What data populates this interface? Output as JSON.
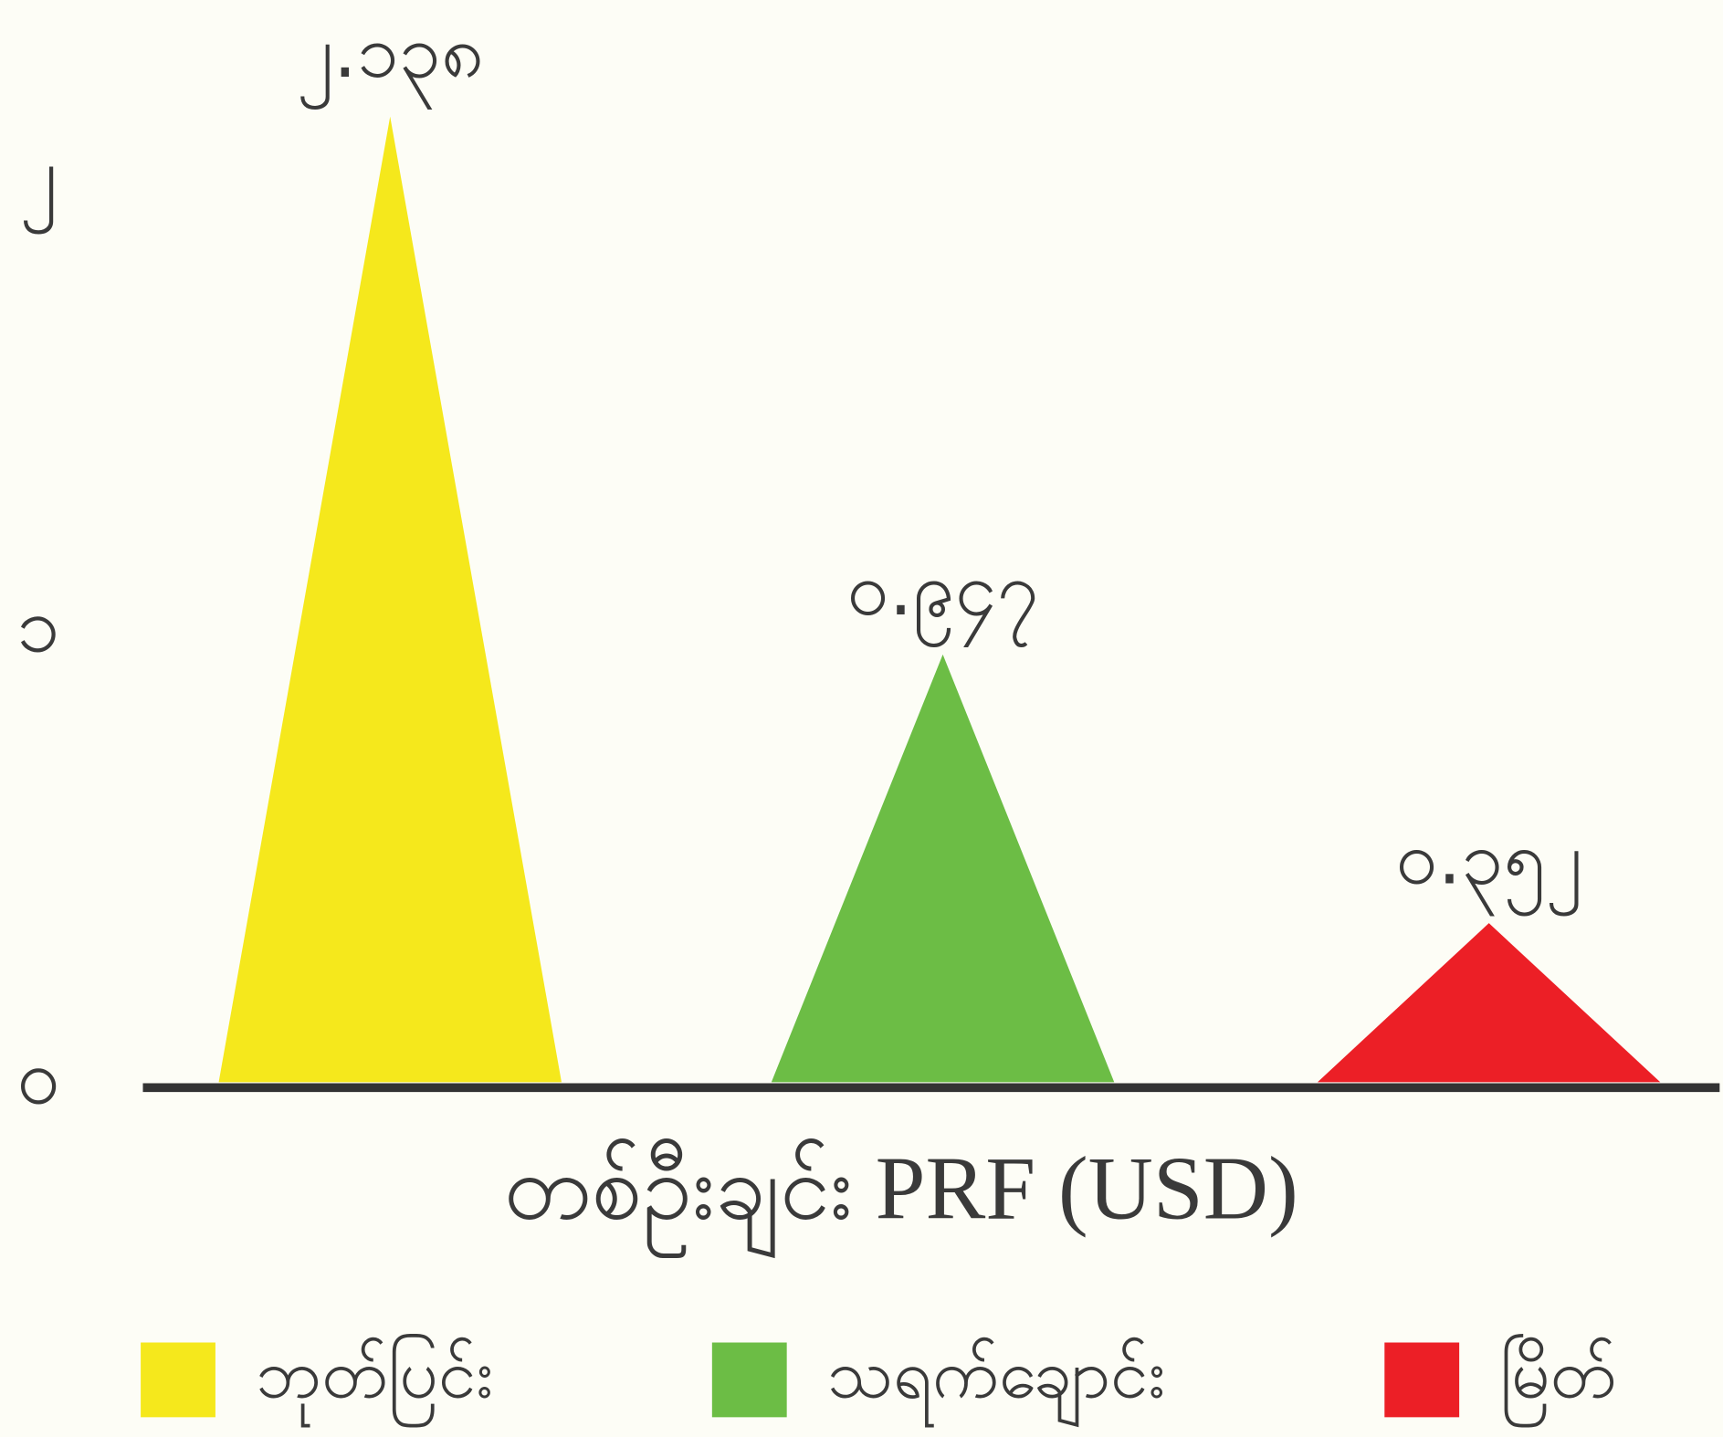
{
  "chart_data": {
    "type": "triangle-bar",
    "categories": [
      "ဘုတ်ပြင်း",
      "သရက်ချောင်း",
      "မြိတ်"
    ],
    "values": [
      2.138,
      0.947,
      0.352
    ],
    "value_labels": [
      "၂.၁၃၈",
      "၀.၉၄၇",
      "၀.၃၅၂"
    ],
    "colors": [
      "#f5e81c",
      "#6cbd45",
      "#ec1f26"
    ],
    "x_label": "တစ်ဦးချင်း PRF (USD)",
    "ylim": [
      0,
      2.25
    ],
    "yticks": [
      {
        "value": 0,
        "label": "၀"
      },
      {
        "value": 1,
        "label": "၁"
      },
      {
        "value": 2,
        "label": "၂"
      }
    ],
    "legend": "bottom"
  }
}
